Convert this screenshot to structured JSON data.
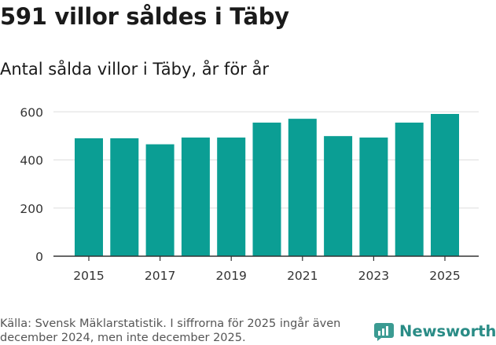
{
  "header": {
    "title": "591 villor såldes i Täby",
    "subtitle": "Antal sålda villor i Täby, år för år"
  },
  "footer": {
    "source": "Källa: Svensk Mäklarstatistik. I siffrorna för 2025 ingår även december 2024, men inte december 2025."
  },
  "brand": {
    "name": "Newsworthy",
    "icon": "newsworthy-logo-icon"
  },
  "colors": {
    "bar": "#0b9e94",
    "grid": "#dddddd",
    "axis": "#333333",
    "brand": "#2a8c86"
  },
  "chart_data": {
    "type": "bar",
    "x": [
      2015,
      2016,
      2017,
      2018,
      2019,
      2020,
      2021,
      2022,
      2023,
      2024,
      2025
    ],
    "values": [
      490,
      490,
      465,
      493,
      493,
      555,
      571,
      499,
      493,
      555,
      591
    ],
    "x_tick_labels": [
      "2015",
      "2017",
      "2019",
      "2021",
      "2023",
      "2025"
    ],
    "y_ticks": [
      0,
      200,
      400,
      600
    ],
    "y_tick_labels": [
      "0",
      "200",
      "400",
      "600"
    ],
    "ylim": [
      0,
      640
    ],
    "grid": true,
    "legend": "none"
  }
}
